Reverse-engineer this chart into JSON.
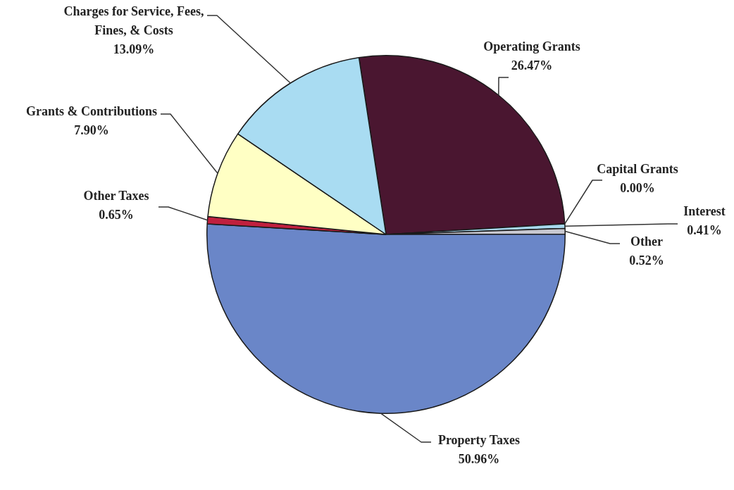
{
  "chart_data": {
    "type": "pie",
    "categories": [
      "Operating Grants",
      "Capital Grants",
      "Interest",
      "Other",
      "Property Taxes",
      "Other Taxes",
      "Grants & Contributions",
      "Charges for Service, Fees, Fines, & Costs"
    ],
    "values": [
      26.47,
      0.0,
      0.41,
      0.52,
      50.96,
      0.65,
      7.9,
      13.09
    ],
    "value_labels": [
      "26.47%",
      "0.00%",
      "0.41%",
      "0.52%",
      "50.96%",
      "0.65%",
      "7.90%",
      "13.09%"
    ],
    "colors": [
      "#4a1630",
      "#7a7a9a",
      "#a8d8ee",
      "#c8c8d0",
      "#6a86c8",
      "#c0203e",
      "#ffffc4",
      "#a9dcf2"
    ],
    "legend": false
  }
}
